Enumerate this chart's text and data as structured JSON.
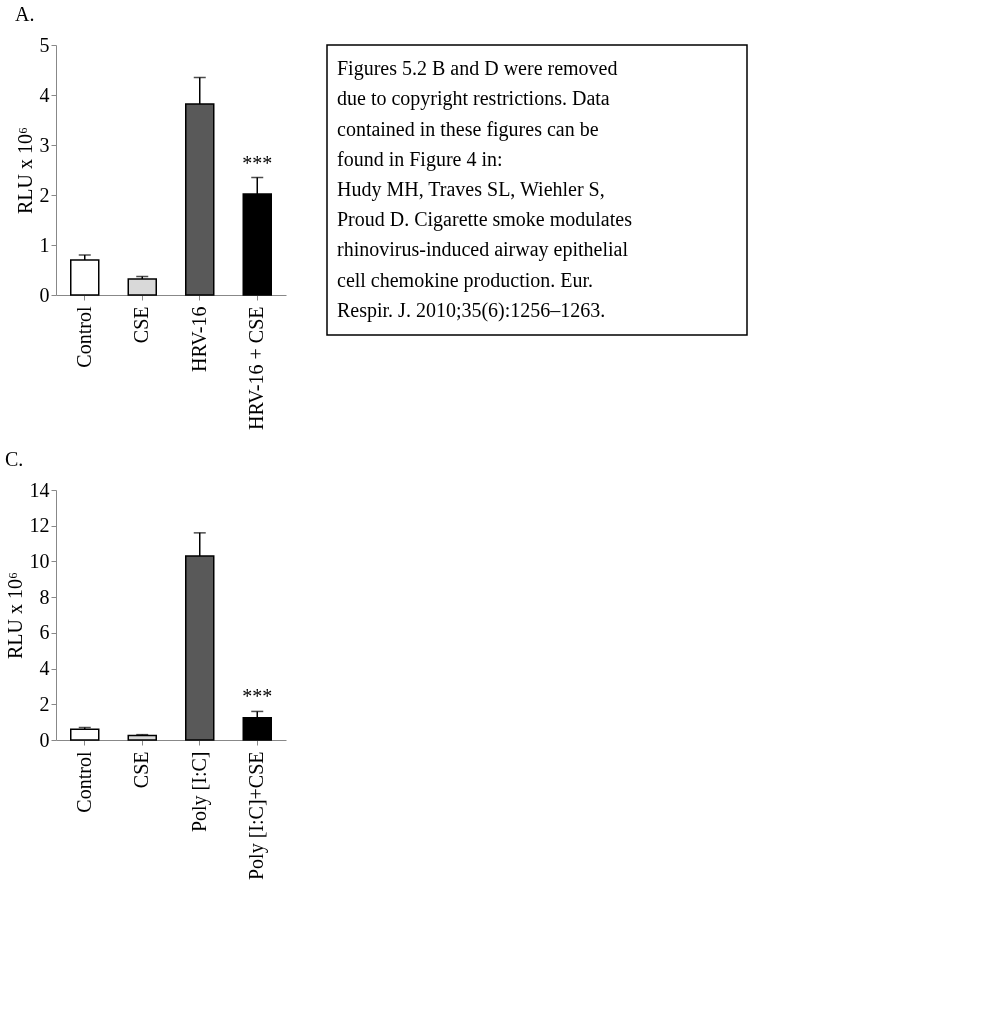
{
  "chart_data": [
    {
      "type": "bar",
      "title": "A.",
      "ylabel": "RLU x 10⁶",
      "categories": [
        "Control",
        "CSE",
        "HRV-16",
        "HRV-16 + CSE"
      ],
      "values": [
        0.7,
        0.32,
        3.82,
        2.02
      ],
      "colors": [
        "#ffffff",
        "#d9d9d9",
        "#595959",
        "#000000"
      ],
      "errors": [
        [
          0.7,
          0.8
        ],
        [
          0.32,
          0.37
        ],
        [
          3.82,
          4.35
        ],
        [
          2.02,
          2.35
        ]
      ],
      "ylim": [
        0,
        5
      ],
      "yticks": [
        0,
        1,
        2,
        3,
        4,
        5
      ],
      "grid": false,
      "annotations": [
        {
          "text": "***",
          "x": "HRV-16 + CSE",
          "y": 2.35
        }
      ]
    },
    {
      "type": "bar",
      "title": "C.",
      "ylabel": "RLU x 10⁶",
      "categories": [
        "Control",
        "CSE",
        "Poly [I:C]",
        "Poly [I:C]+CSE"
      ],
      "values": [
        0.6,
        0.25,
        10.3,
        1.25
      ],
      "colors": [
        "#ffffff",
        "#d9d9d9",
        "#595959",
        "#000000"
      ],
      "errors": [
        [
          0.6,
          0.7
        ],
        [
          0.25,
          0.3
        ],
        [
          10.3,
          11.6
        ],
        [
          1.25,
          1.6
        ]
      ],
      "ylim": [
        0,
        14
      ],
      "yticks": [
        0,
        2,
        4,
        6,
        8,
        10,
        12,
        14
      ],
      "grid": false,
      "annotations": [
        {
          "text": "***",
          "x": "Poly [I:C]+CSE",
          "y": 1.6
        }
      ]
    },
    {
      "type": "other",
      "annotations": [
        "Figures 5.2 B and D were removed",
        "due to copyright restrictions. Data",
        "contained in these figures can be",
        "found in Figure 4 in:",
        "Hudy MH, Traves SL, Wiehler S,",
        "Proud D. Cigarette smoke modulates",
        "rhinovirus-induced airway epithelial",
        "cell chemokine production. Eur.",
        "Respir. J. 2010;35(6):1256–1263."
      ]
    }
  ]
}
